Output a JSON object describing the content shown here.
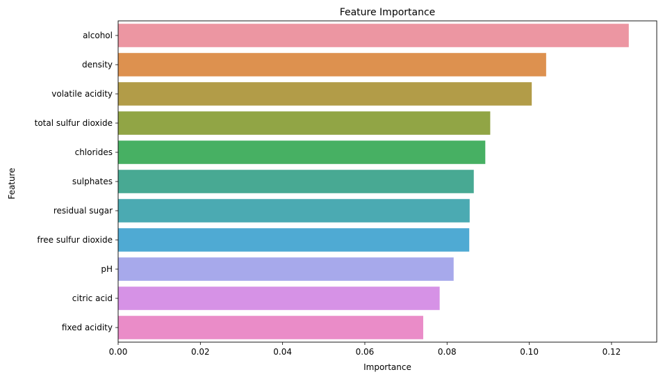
{
  "chart_data": {
    "type": "bar",
    "orientation": "horizontal",
    "title": "Feature Importance",
    "xlabel": "Importance",
    "ylabel": "Feature",
    "xlim": [
      0,
      0.131
    ],
    "xticks": [
      "0.00",
      "0.02",
      "0.04",
      "0.06",
      "0.08",
      "0.10",
      "0.12"
    ],
    "xtick_values": [
      0,
      0.02,
      0.04,
      0.06,
      0.08,
      0.1,
      0.12
    ],
    "grid": false,
    "categories": [
      "alcohol",
      "density",
      "volatile acidity",
      "total sulfur dioxide",
      "chlorides",
      "sulphates",
      "residual sugar",
      "free sulfur dioxide",
      "pH",
      "citric acid",
      "fixed acidity"
    ],
    "values": [
      0.1242,
      0.1041,
      0.1006,
      0.0905,
      0.0893,
      0.0865,
      0.0855,
      0.0854,
      0.0816,
      0.0782,
      0.0742
    ],
    "colors": [
      "#ec96a2",
      "#dd914f",
      "#b29c48",
      "#91a545",
      "#47b063",
      "#48a993",
      "#4baab2",
      "#4faad3",
      "#a7a9eb",
      "#d692e6",
      "#ea8cc8"
    ]
  }
}
